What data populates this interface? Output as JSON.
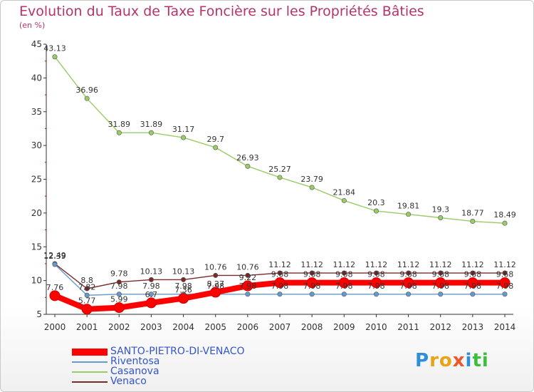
{
  "title": "Evolution du Taux de Taxe Foncière sur les Propriétés Bâties",
  "subtitle": "(en %)",
  "logo": {
    "text": "Proxiti",
    "letter_colors": [
      "#2e8fd8",
      "#e8a317",
      "#e8a317",
      "#f0562b",
      "#2e8fd8",
      "#3bbf3b",
      "#3bbf3b"
    ]
  },
  "chart_data": {
    "type": "line",
    "title": "Evolution du Taux de Taxe Foncière sur les Propriétés Bâties",
    "ylabel": "(en %)",
    "xlabel": "",
    "ylim": [
      5,
      45
    ],
    "yticks": [
      5,
      10,
      15,
      20,
      25,
      30,
      35,
      40,
      45
    ],
    "x": [
      "2000",
      "2001",
      "2002",
      "2003",
      "2004",
      "2005",
      "2006",
      "2007",
      "2008",
      "2009",
      "2010",
      "2011",
      "2012",
      "2013",
      "2014"
    ],
    "legend_position": "bottom",
    "series": [
      {
        "name": "SANTO-PIETRO-DI-VENACO",
        "color": "#ff0000",
        "thick": true,
        "values": [
          7.76,
          5.77,
          5.99,
          6.7,
          7.36,
          8.27,
          9.22,
          9.68,
          9.68,
          9.68,
          9.68,
          9.68,
          9.68,
          9.68,
          9.68
        ],
        "labels": [
          "7.76",
          "5.77",
          "5.99",
          "6.7",
          "7.36",
          "8.27",
          "9.22",
          "9.68",
          "9.68",
          "9.68",
          "9.68",
          "9.68",
          "9.68",
          "9.68",
          "9.68"
        ]
      },
      {
        "name": "Riventosa",
        "color": "#6699cc",
        "thick": false,
        "values": [
          12.39,
          7.82,
          7.98,
          7.98,
          7.98,
          7.98,
          7.98,
          7.98,
          7.98,
          7.98,
          7.98,
          7.98,
          7.98,
          7.98,
          7.98
        ],
        "labels": [
          "12.39",
          "7.82",
          "7.98",
          "7.98",
          "7.98",
          "7.98",
          "7.98",
          "7.98",
          "7.98",
          "7.98",
          "7.98",
          "7.98",
          "7.98",
          "7.98",
          "7.98"
        ]
      },
      {
        "name": "Casanova",
        "color": "#99cc66",
        "thick": false,
        "values": [
          43.13,
          36.96,
          31.89,
          31.89,
          31.17,
          29.7,
          26.93,
          25.27,
          23.79,
          21.84,
          20.3,
          19.81,
          19.3,
          18.77,
          18.49
        ],
        "labels": [
          "43.13",
          "36.96",
          "31.89",
          "31.89",
          "31.17",
          "29.7",
          "26.93",
          "25.27",
          "23.79",
          "21.84",
          "20.3",
          "19.81",
          "19.3",
          "18.77",
          "18.49"
        ]
      },
      {
        "name": "Venaco",
        "color": "#7a2a2a",
        "thick": false,
        "values": [
          12.49,
          8.8,
          9.78,
          10.13,
          10.13,
          10.76,
          10.76,
          11.12,
          11.12,
          11.12,
          11.12,
          11.12,
          11.12,
          11.12,
          11.12
        ],
        "labels": [
          "12.49",
          "8.8",
          "9.78",
          "10.13",
          "10.13",
          "10.76",
          "10.76",
          "11.12",
          "11.12",
          "11.12",
          "11.12",
          "11.12",
          "11.12",
          "11.12",
          "11.12"
        ]
      }
    ]
  }
}
